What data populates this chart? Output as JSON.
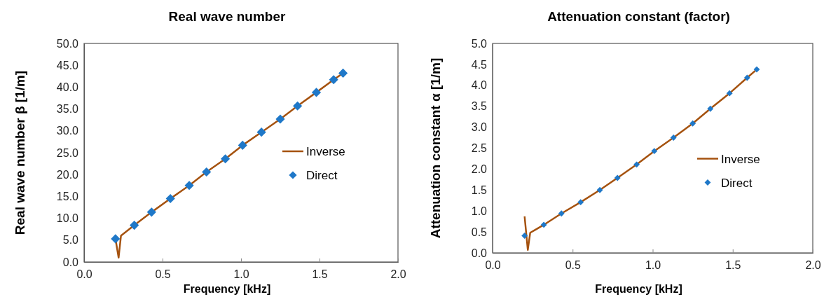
{
  "chart_data": [
    {
      "type": "line",
      "title": "Real wave number",
      "xlabel": "Frequency [kHz]",
      "ylabel": "Real wave number β [1/m]",
      "xlim": [
        0,
        2
      ],
      "xticks": [
        {
          "value": 0,
          "label": "0.0"
        },
        {
          "value": 0.5,
          "label": "0.5"
        },
        {
          "value": 1,
          "label": "1.0"
        },
        {
          "value": 1.5,
          "label": "1.5"
        },
        {
          "value": 2,
          "label": "2.0"
        }
      ],
      "ylim": [
        0,
        50
      ],
      "yticks": [
        {
          "value": 0,
          "label": "0.0"
        },
        {
          "value": 5,
          "label": "5.0"
        },
        {
          "value": 10,
          "label": "10.0"
        },
        {
          "value": 15,
          "label": "15.0"
        },
        {
          "value": 20,
          "label": "20.0"
        },
        {
          "value": 25,
          "label": "25.0"
        },
        {
          "value": 30,
          "label": "30.0"
        },
        {
          "value": 35,
          "label": "35.0"
        },
        {
          "value": 40,
          "label": "40.0"
        },
        {
          "value": 45,
          "label": "45.0"
        },
        {
          "value": 50,
          "label": "50.0"
        }
      ],
      "legend": "right",
      "grid": false,
      "series": [
        {
          "name": "Inverse",
          "color": "#a5520f",
          "marker": "none",
          "line_style": "solid",
          "x": [
            0.2,
            0.22,
            0.235,
            0.32,
            0.43,
            0.55,
            0.67,
            0.78,
            0.9,
            1.01,
            1.13,
            1.25,
            1.36,
            1.48,
            1.59,
            1.65
          ],
          "values": [
            5.3,
            1.0,
            6.0,
            8.4,
            11.4,
            14.5,
            17.5,
            20.6,
            23.6,
            26.7,
            29.7,
            32.7,
            35.7,
            38.8,
            41.7,
            43.2
          ]
        },
        {
          "name": "Direct",
          "type": "scatter",
          "color": "#1f78c8",
          "marker": "diamond",
          "x": [
            0.2,
            0.32,
            0.43,
            0.55,
            0.67,
            0.78,
            0.9,
            1.01,
            1.13,
            1.25,
            1.36,
            1.48,
            1.59,
            1.65
          ],
          "values": [
            5.3,
            8.4,
            11.4,
            14.5,
            17.5,
            20.6,
            23.6,
            26.7,
            29.7,
            32.7,
            35.7,
            38.8,
            41.7,
            43.2
          ]
        }
      ]
    },
    {
      "type": "line",
      "title": "Attenuation constant (factor)",
      "xlabel": "Frequency [kHz]",
      "ylabel": "Attenuation constant  α [1/m]",
      "xlim": [
        0,
        2
      ],
      "xticks": [
        {
          "value": 0,
          "label": "0.0"
        },
        {
          "value": 0.5,
          "label": "0.5"
        },
        {
          "value": 1,
          "label": "1.0"
        },
        {
          "value": 1.5,
          "label": "1.5"
        },
        {
          "value": 2,
          "label": "2.0"
        }
      ],
      "ylim": [
        0,
        5
      ],
      "yticks": [
        {
          "value": 0,
          "label": "0.0"
        },
        {
          "value": 0.5,
          "label": "0.5"
        },
        {
          "value": 1,
          "label": "1.0"
        },
        {
          "value": 1.5,
          "label": "1.5"
        },
        {
          "value": 2,
          "label": "2.0"
        },
        {
          "value": 2.5,
          "label": "2.5"
        },
        {
          "value": 3,
          "label": "3.0"
        },
        {
          "value": 3.5,
          "label": "3.5"
        },
        {
          "value": 4,
          "label": "4.0"
        },
        {
          "value": 4.5,
          "label": "4.5"
        },
        {
          "value": 5,
          "label": "5.0"
        }
      ],
      "legend": "right",
      "grid": false,
      "series": [
        {
          "name": "Inverse",
          "color": "#a5520f",
          "marker": "none",
          "line_style": "solid",
          "x": [
            0.2,
            0.22,
            0.235,
            0.32,
            0.43,
            0.55,
            0.67,
            0.78,
            0.9,
            1.01,
            1.13,
            1.25,
            1.36,
            1.48,
            1.59,
            1.65
          ],
          "values": [
            0.87,
            0.07,
            0.48,
            0.67,
            0.94,
            1.21,
            1.5,
            1.79,
            2.11,
            2.43,
            2.75,
            3.09,
            3.44,
            3.81,
            4.18,
            4.38
          ]
        },
        {
          "name": "Direct",
          "type": "scatter",
          "color": "#1f78c8",
          "marker": "diamond",
          "x": [
            0.2,
            0.32,
            0.43,
            0.55,
            0.67,
            0.78,
            0.9,
            1.01,
            1.13,
            1.25,
            1.36,
            1.48,
            1.59,
            1.65
          ],
          "values": [
            0.41,
            0.67,
            0.94,
            1.21,
            1.5,
            1.79,
            2.11,
            2.43,
            2.75,
            3.09,
            3.44,
            3.81,
            4.18,
            4.38
          ]
        }
      ]
    }
  ]
}
